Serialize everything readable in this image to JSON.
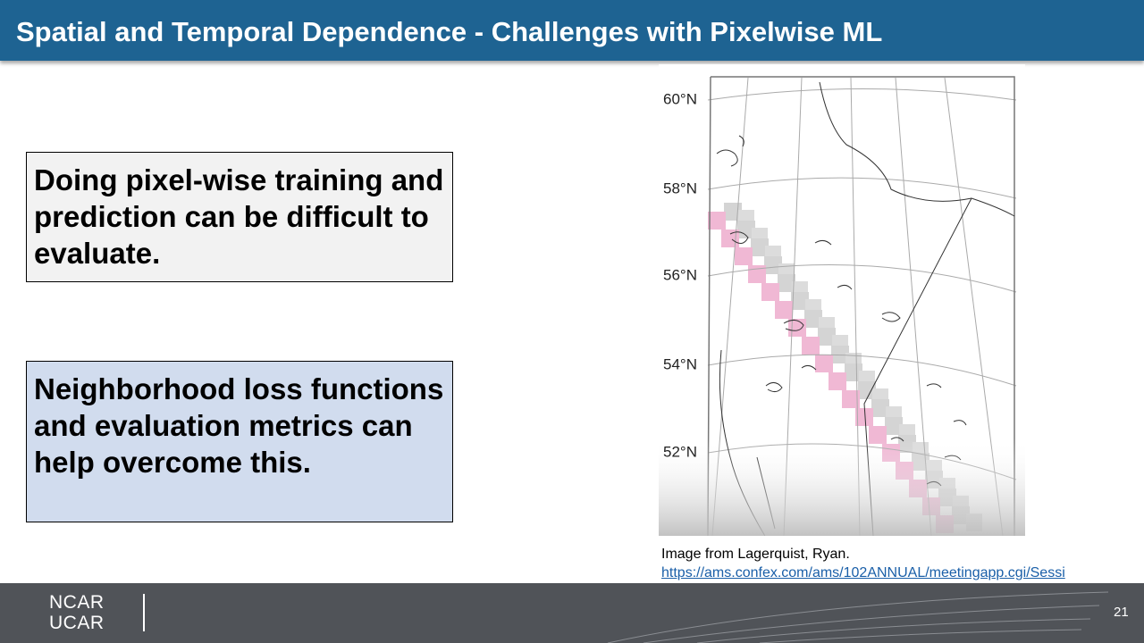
{
  "header": {
    "title": "Spatial and Temporal Dependence - Challenges with Pixelwise ML"
  },
  "boxes": [
    {
      "text": "Doing pixel-wise training and prediction can be difficult to evaluate."
    },
    {
      "text": "Neighborhood loss functions and evaluation metrics can help overcome this."
    }
  ],
  "map": {
    "lat_labels": [
      "60°N",
      "58°N",
      "56°N",
      "54°N",
      "52°N"
    ]
  },
  "caption": {
    "text": "Image from Lagerquist, Ryan.",
    "link": "https://ams.confex.com/ams/102ANNUAL/meetingapp.cgi/Sessi"
  },
  "footer": {
    "logo_top": "NCAR",
    "logo_bottom": "UCAR",
    "page_number": "21"
  }
}
